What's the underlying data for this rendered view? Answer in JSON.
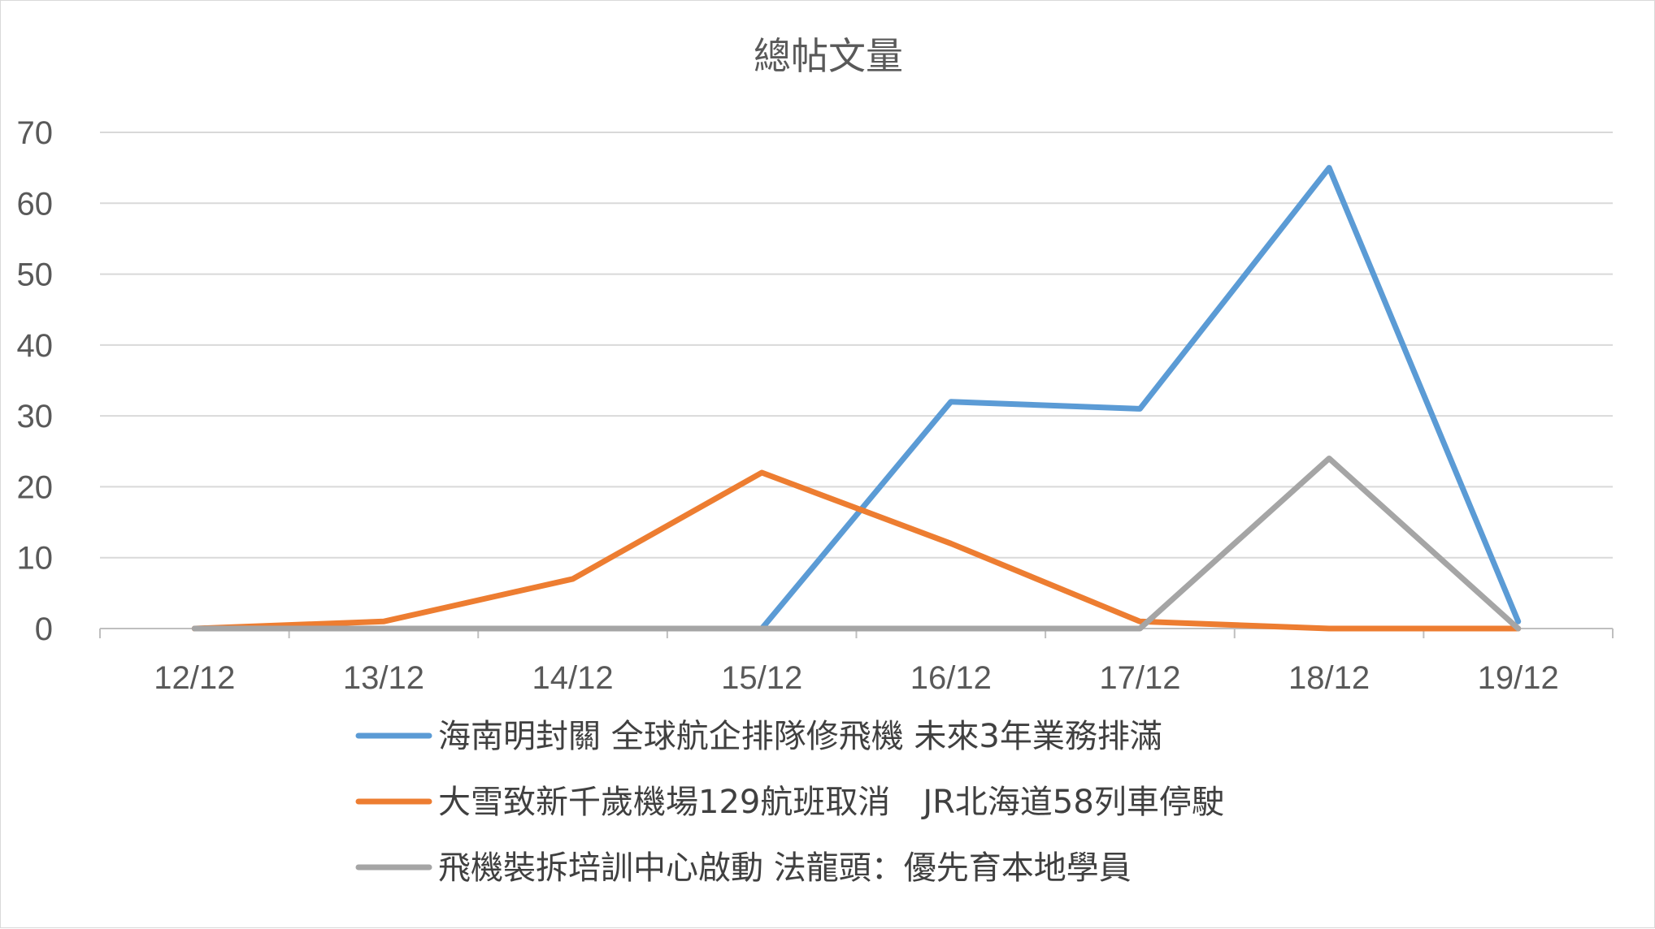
{
  "chart_data": {
    "type": "line",
    "title": "總帖文量",
    "xlabel": "",
    "ylabel": "",
    "categories": [
      "12/12",
      "13/12",
      "14/12",
      "15/12",
      "16/12",
      "17/12",
      "18/12",
      "19/12"
    ],
    "ylim": [
      0,
      70
    ],
    "yticks": [
      0,
      10,
      20,
      30,
      40,
      50,
      60,
      70
    ],
    "grid": true,
    "legend": "bottom",
    "series": [
      {
        "name": "海南明封關 全球航企排隊修飛機 未來3年業務排滿",
        "color": "#5b9bd5",
        "values": [
          null,
          null,
          null,
          0,
          32,
          31,
          65,
          1
        ]
      },
      {
        "name": "大雪致新千歲機場129航班取消　JR北海道58列車停駛",
        "color": "#ed7d31",
        "values": [
          0,
          1,
          7,
          22,
          12,
          1,
          0,
          0
        ]
      },
      {
        "name": "飛機裝拆培訓中心啟動 法龍頭：優先育本地學員",
        "color": "#a5a5a5",
        "values": [
          0,
          0,
          0,
          0,
          0,
          0,
          24,
          0
        ]
      }
    ]
  }
}
